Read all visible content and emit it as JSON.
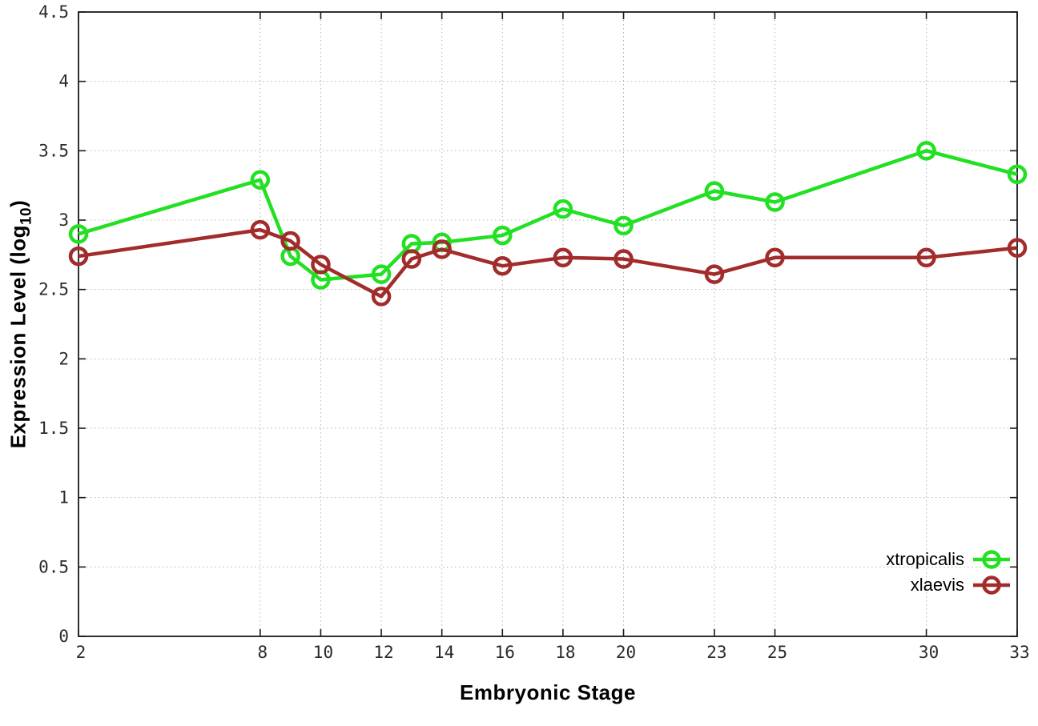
{
  "chart_data": {
    "type": "line",
    "title": "",
    "xlabel": "Embryonic Stage",
    "ylabel_base": "Expression Level (log",
    "ylabel_sub": "10",
    "ylabel_suffix": ")",
    "x": [
      2,
      8,
      9,
      10,
      12,
      13,
      14,
      16,
      18,
      20,
      23,
      25,
      30,
      33
    ],
    "series": [
      {
        "name": "xtropicalis",
        "color": "#22e022",
        "values": [
          2.9,
          3.29,
          2.74,
          2.57,
          2.61,
          2.83,
          2.84,
          2.89,
          3.08,
          2.96,
          3.21,
          3.13,
          3.5,
          3.33
        ]
      },
      {
        "name": "xlaevis",
        "color": "#a22b2b",
        "values": [
          2.74,
          2.93,
          2.85,
          2.68,
          2.45,
          2.72,
          2.79,
          2.67,
          2.73,
          2.72,
          2.61,
          2.73,
          2.73,
          2.8
        ]
      }
    ],
    "xticks": [
      2,
      8,
      10,
      12,
      14,
      16,
      18,
      20,
      23,
      25,
      30,
      33
    ],
    "yticks": [
      0,
      0.5,
      1,
      1.5,
      2,
      2.5,
      3,
      3.5,
      4,
      4.5
    ],
    "xlim": [
      2,
      33
    ],
    "ylim": [
      0,
      4.5
    ],
    "grid": true,
    "legend_position": "inside-bottom-right",
    "background_color": "#ffffff",
    "grid_color": "#b4b4b4",
    "axis_color": "#1a1a1a"
  }
}
